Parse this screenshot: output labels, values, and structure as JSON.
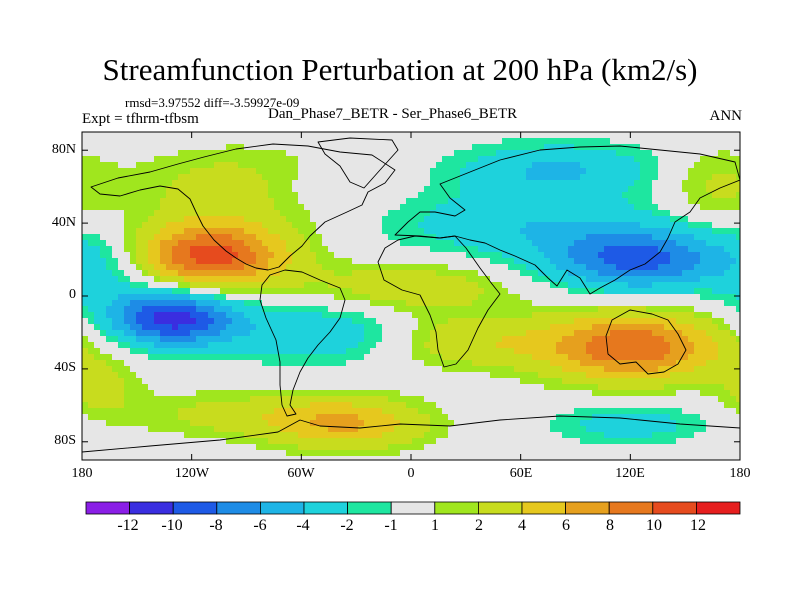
{
  "chart_data": {
    "type": "heatmap",
    "title": "Streamfunction Perturbation at 200 hPa (km2/s)",
    "stats": {
      "rmsd_label": "rmsd=",
      "rmsd": "3.97552",
      "diff_label": "diff=",
      "diff": "-3.59927e-09"
    },
    "experiment": "Expt = tfhrm-tfbsm",
    "cases": "Dan_Phase7_BETR - Ser_Phase6_BETR",
    "season": "ANN",
    "lon_range": [
      -180,
      180
    ],
    "lat_range": [
      -90,
      90
    ],
    "lat_ticks": [
      {
        "value": 80,
        "label": "80N"
      },
      {
        "value": 40,
        "label": "40N"
      },
      {
        "value": 0,
        "label": "0"
      },
      {
        "value": -40,
        "label": "40S"
      },
      {
        "value": -80,
        "label": "80S"
      }
    ],
    "lon_ticks": [
      {
        "value": -180,
        "label": "180"
      },
      {
        "value": -120,
        "label": "120W"
      },
      {
        "value": -60,
        "label": "60W"
      },
      {
        "value": 0,
        "label": "0"
      },
      {
        "value": 60,
        "label": "60E"
      },
      {
        "value": 120,
        "label": "120E"
      },
      {
        "value": 180,
        "label": "180"
      }
    ],
    "colorbar": {
      "colors": [
        "#8a1ee6",
        "#3a2ee0",
        "#1e5ae6",
        "#1e8ce6",
        "#1eb4e6",
        "#1ed2dc",
        "#1ee6a0",
        "#e6e6e6",
        "#a0e61e",
        "#c8dc1e",
        "#e6c81e",
        "#e6a01e",
        "#e6781e",
        "#e64b1e",
        "#e61e1e"
      ],
      "labels": [
        "-12",
        "-10",
        "-8",
        "-6",
        "-4",
        "-2",
        "-1",
        "1",
        "2",
        "4",
        "6",
        "8",
        "10",
        "12"
      ]
    },
    "anomalies": [
      {
        "lon": -110,
        "lat": 22,
        "amp": 11,
        "slon": 30,
        "slat": 13
      },
      {
        "lon": -130,
        "lat": -12,
        "amp": -11,
        "slon": 25,
        "slat": 11
      },
      {
        "lon": -50,
        "lat": -20,
        "amp": -3.5,
        "slon": 35,
        "slat": 12
      },
      {
        "lon": 125,
        "lat": 20,
        "amp": -8.5,
        "slon": 35,
        "slat": 12
      },
      {
        "lon": 60,
        "lat": 40,
        "amp": -3.5,
        "slon": 55,
        "slat": 14
      },
      {
        "lon": 80,
        "lat": 70,
        "amp": -4,
        "slon": 40,
        "slat": 10
      },
      {
        "lon": 120,
        "lat": -28,
        "amp": 10,
        "slon": 35,
        "slat": 13
      },
      {
        "lon": 30,
        "lat": -25,
        "amp": 3.5,
        "slon": 30,
        "slat": 10
      },
      {
        "lon": -35,
        "lat": -70,
        "amp": 6,
        "slon": 30,
        "slat": 10
      },
      {
        "lon": -100,
        "lat": -65,
        "amp": 2.5,
        "slon": 40,
        "slat": 9
      },
      {
        "lon": 120,
        "lat": -70,
        "amp": -3,
        "slon": 30,
        "slat": 8
      },
      {
        "lon": -170,
        "lat": -50,
        "amp": 2.5,
        "slon": 15,
        "slat": 12
      },
      {
        "lon": -90,
        "lat": 60,
        "amp": 3,
        "slon": 45,
        "slat": 15
      },
      {
        "lon": -165,
        "lat": 15,
        "amp": -2.5,
        "slon": 20,
        "slat": 15
      },
      {
        "lon": 0,
        "lat": 5,
        "amp": 3.5,
        "slon": 40,
        "slat": 10
      },
      {
        "lon": 165,
        "lat": 60,
        "amp": 2.5,
        "slon": 20,
        "slat": 15
      },
      {
        "lon": -60,
        "lat": 60,
        "amp": -1.5,
        "slon": 20,
        "slat": 10
      }
    ]
  }
}
